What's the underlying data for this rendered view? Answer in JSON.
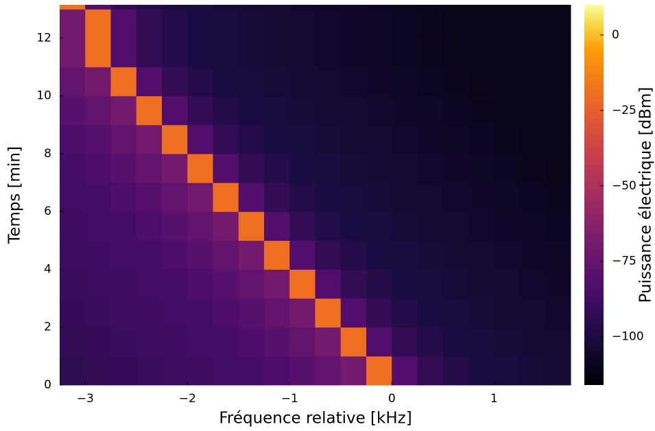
{
  "chart_data": {
    "type": "heatmap",
    "xlabel": "Fréquence relative [kHz]",
    "ylabel": "Temps [min]",
    "colorbar_label": "Puissance électrique [dBm]",
    "colormap": "inferno",
    "xlim": [
      -3.25,
      1.75
    ],
    "ylim": [
      0,
      13.15
    ],
    "clim": [
      -116,
      10
    ],
    "xticks": [
      {
        "value": -3,
        "label": "−3"
      },
      {
        "value": -2,
        "label": "−2"
      },
      {
        "value": -1,
        "label": "−1"
      },
      0,
      1
    ],
    "yticks": [
      0,
      2,
      4,
      6,
      8,
      10,
      12
    ],
    "cticks": [
      {
        "value": -100,
        "label": "−100"
      },
      {
        "value": -75,
        "label": "−75"
      },
      {
        "value": -50,
        "label": "−50"
      },
      {
        "value": -25,
        "label": "−25"
      },
      0
    ],
    "xbins": [
      -3.25,
      -3.0,
      -2.75,
      -2.5,
      -2.25,
      -2.0,
      -1.75,
      -1.5,
      -1.25,
      -1.0,
      -0.75,
      -0.5,
      -0.25,
      0,
      0.25,
      0.5,
      0.75,
      1.0,
      1.25,
      1.5,
      1.75
    ],
    "ybins": [
      0,
      1,
      2,
      3,
      4,
      5,
      6,
      7,
      8,
      9,
      10,
      11,
      12,
      13,
      13.15
    ],
    "z": [
      [
        -93,
        -92,
        -91,
        -90,
        -89,
        -88,
        -87,
        -86,
        -83,
        -80,
        -76,
        -70,
        -20,
        -82,
        -92,
        -97,
        -100,
        -101,
        -102,
        -103
      ],
      [
        -92,
        -91,
        -90,
        -89,
        -88,
        -87,
        -86,
        -83,
        -80,
        -76,
        -70,
        -20,
        -82,
        -92,
        -97,
        -100,
        -101,
        -102,
        -103,
        -104
      ],
      [
        -91,
        -90,
        -89,
        -88,
        -87,
        -86,
        -83,
        -80,
        -76,
        -70,
        -20,
        -82,
        -92,
        -97,
        -100,
        -101,
        -102,
        -103,
        -104,
        -105
      ],
      [
        -90,
        -89,
        -88,
        -87,
        -86,
        -83,
        -80,
        -76,
        -70,
        -20,
        -82,
        -92,
        -97,
        -100,
        -101,
        -102,
        -103,
        -104,
        -105,
        -106
      ],
      [
        -89,
        -88,
        -87,
        -86,
        -83,
        -80,
        -76,
        -70,
        -20,
        -82,
        -92,
        -97,
        -100,
        -101,
        -102,
        -103,
        -104,
        -105,
        -106,
        -107
      ],
      [
        -88,
        -87,
        -86,
        -83,
        -80,
        -76,
        -70,
        -20,
        -82,
        -92,
        -97,
        -100,
        -101,
        -102,
        -103,
        -104,
        -105,
        -106,
        -107,
        -108
      ],
      [
        -87,
        -86,
        -83,
        -80,
        -76,
        -70,
        -20,
        -82,
        -92,
        -97,
        -100,
        -101,
        -102,
        -103,
        -104,
        -105,
        -106,
        -107,
        -108,
        -109
      ],
      [
        -86,
        -83,
        -80,
        -76,
        -70,
        -20,
        -82,
        -92,
        -97,
        -100,
        -101,
        -102,
        -103,
        -104,
        -105,
        -106,
        -107,
        -108,
        -109,
        -110
      ],
      [
        -83,
        -80,
        -76,
        -70,
        -20,
        -82,
        -92,
        -97,
        -100,
        -101,
        -102,
        -103,
        -104,
        -105,
        -106,
        -107,
        -108,
        -109,
        -110,
        -110
      ],
      [
        -80,
        -76,
        -70,
        -20,
        -82,
        -92,
        -97,
        -100,
        -101,
        -102,
        -103,
        -104,
        -105,
        -106,
        -107,
        -108,
        -109,
        -110,
        -110,
        -110
      ],
      [
        -76,
        -70,
        -20,
        -82,
        -92,
        -97,
        -100,
        -101,
        -102,
        -103,
        -104,
        -105,
        -106,
        -107,
        -108,
        -109,
        -110,
        -110,
        -110,
        -110
      ],
      [
        -70,
        -20,
        -82,
        -92,
        -97,
        -100,
        -101,
        -102,
        -103,
        -104,
        -105,
        -106,
        -107,
        -108,
        -109,
        -110,
        -110,
        -110,
        -110,
        -110
      ],
      [
        -70,
        -20,
        -82,
        -92,
        -97,
        -100,
        -101,
        -102,
        -103,
        -104,
        -105,
        -106,
        -107,
        -108,
        -109,
        -110,
        -110,
        -110,
        -110,
        -110
      ],
      [
        -20,
        -82,
        -92,
        -97,
        -100,
        -101,
        -102,
        -103,
        -104,
        -105,
        -106,
        -107,
        -108,
        -109,
        -110,
        -110,
        -110,
        -110,
        -110,
        -110
      ]
    ]
  }
}
